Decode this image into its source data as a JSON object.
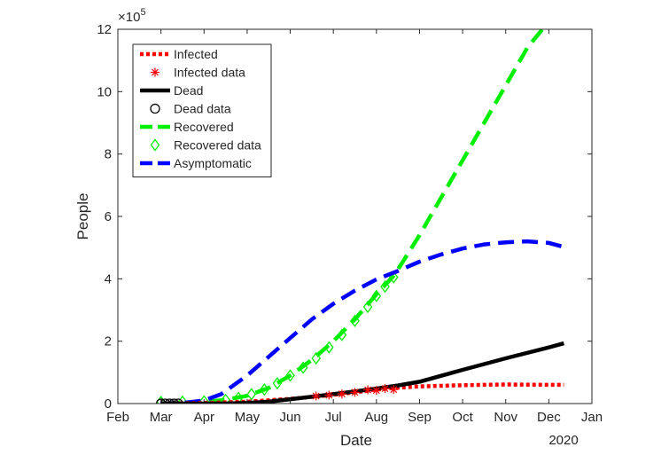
{
  "chart_data": {
    "type": "line",
    "title": "",
    "xlabel": "Date",
    "ylabel": "People",
    "y_exponent_label": "×10",
    "y_exponent_power": "5",
    "year_label": "2020",
    "xlim": [
      0,
      11
    ],
    "ylim": [
      0,
      12
    ],
    "x_ticks": [
      0,
      1,
      2,
      3,
      4,
      5,
      6,
      7,
      8,
      9,
      10,
      11
    ],
    "x_tick_labels": [
      "Feb",
      "Mar",
      "Apr",
      "May",
      "Jun",
      "Jul",
      "Aug",
      "Sep",
      "Oct",
      "Nov",
      "Dec",
      "Jan"
    ],
    "y_ticks": [
      0,
      2,
      4,
      6,
      8,
      10,
      12
    ],
    "y_tick_labels": [
      "0",
      "2",
      "4",
      "6",
      "8",
      "10",
      "12"
    ],
    "grid": false,
    "legend_position": "top-left",
    "series": [
      {
        "name": "Infected",
        "kind": "line",
        "style": "dotted",
        "color": "#ff0000",
        "x": [
          1.0,
          2.0,
          3.0,
          4.0,
          5.0,
          5.5,
          6.0,
          6.5,
          7.0,
          8.0,
          9.0,
          10.0,
          10.35
        ],
        "y": [
          0.0,
          0.02,
          0.06,
          0.15,
          0.28,
          0.36,
          0.45,
          0.51,
          0.55,
          0.59,
          0.61,
          0.6,
          0.6
        ]
      },
      {
        "name": "Infected data",
        "kind": "markers",
        "marker": "asterisk",
        "color": "#ff0000",
        "x": [
          4.6,
          4.9,
          5.2,
          5.5,
          5.8,
          6.0,
          6.2,
          6.4
        ],
        "y": [
          0.24,
          0.27,
          0.31,
          0.36,
          0.44,
          0.42,
          0.48,
          0.45
        ]
      },
      {
        "name": "Dead",
        "kind": "line",
        "style": "solid",
        "color": "#000000",
        "x": [
          1.0,
          2.0,
          2.5,
          3.0,
          3.5,
          4.0,
          4.5,
          5.0,
          5.5,
          6.0,
          6.5,
          7.0,
          8.0,
          9.0,
          10.0,
          10.35
        ],
        "y": [
          0.0,
          0.0,
          0.0,
          0.02,
          0.06,
          0.14,
          0.22,
          0.3,
          0.39,
          0.48,
          0.58,
          0.7,
          1.08,
          1.45,
          1.8,
          1.93
        ]
      },
      {
        "name": "Dead data",
        "kind": "markers",
        "marker": "circle",
        "color": "#000000",
        "x": [
          1.0,
          1.1,
          1.2,
          1.3,
          1.4
        ],
        "y": [
          0.0,
          0.0,
          0.0,
          0.0,
          0.0
        ]
      },
      {
        "name": "Recovered",
        "kind": "line",
        "style": "dashed",
        "color": "#00ee00",
        "x": [
          1.0,
          2.0,
          2.5,
          3.0,
          3.5,
          4.0,
          4.5,
          5.0,
          5.5,
          6.0,
          6.4,
          6.5,
          7.0,
          7.5,
          8.0,
          8.5,
          9.0,
          9.5,
          9.85
        ],
        "y": [
          0.0,
          0.05,
          0.12,
          0.25,
          0.5,
          0.9,
          1.4,
          2.0,
          2.7,
          3.5,
          4.1,
          4.3,
          5.4,
          6.6,
          7.8,
          9.0,
          10.2,
          11.4,
          12.0
        ]
      },
      {
        "name": "Recovered data",
        "kind": "markers",
        "marker": "diamond",
        "color": "#00ee00",
        "x": [
          1.0,
          1.5,
          2.0,
          2.5,
          2.8,
          3.1,
          3.4,
          3.7,
          4.0,
          4.3,
          4.6,
          4.9,
          5.2,
          5.5,
          5.8,
          6.0,
          6.2,
          6.4
        ],
        "y": [
          0.05,
          0.06,
          0.07,
          0.12,
          0.18,
          0.3,
          0.45,
          0.65,
          0.9,
          1.15,
          1.45,
          1.8,
          2.2,
          2.65,
          3.1,
          3.45,
          3.75,
          4.05
        ]
      },
      {
        "name": "Asymptomatic",
        "kind": "line",
        "style": "dashed",
        "color": "#0000ff",
        "x": [
          1.0,
          1.5,
          2.0,
          2.4,
          3.0,
          3.5,
          4.0,
          4.5,
          5.0,
          5.5,
          6.0,
          6.5,
          7.0,
          7.5,
          8.0,
          8.5,
          9.0,
          9.5,
          10.0,
          10.35
        ],
        "y": [
          0.0,
          0.02,
          0.1,
          0.3,
          0.9,
          1.5,
          2.1,
          2.7,
          3.2,
          3.62,
          3.98,
          4.25,
          4.55,
          4.78,
          4.97,
          5.1,
          5.17,
          5.2,
          5.15,
          5.02
        ]
      }
    ]
  }
}
